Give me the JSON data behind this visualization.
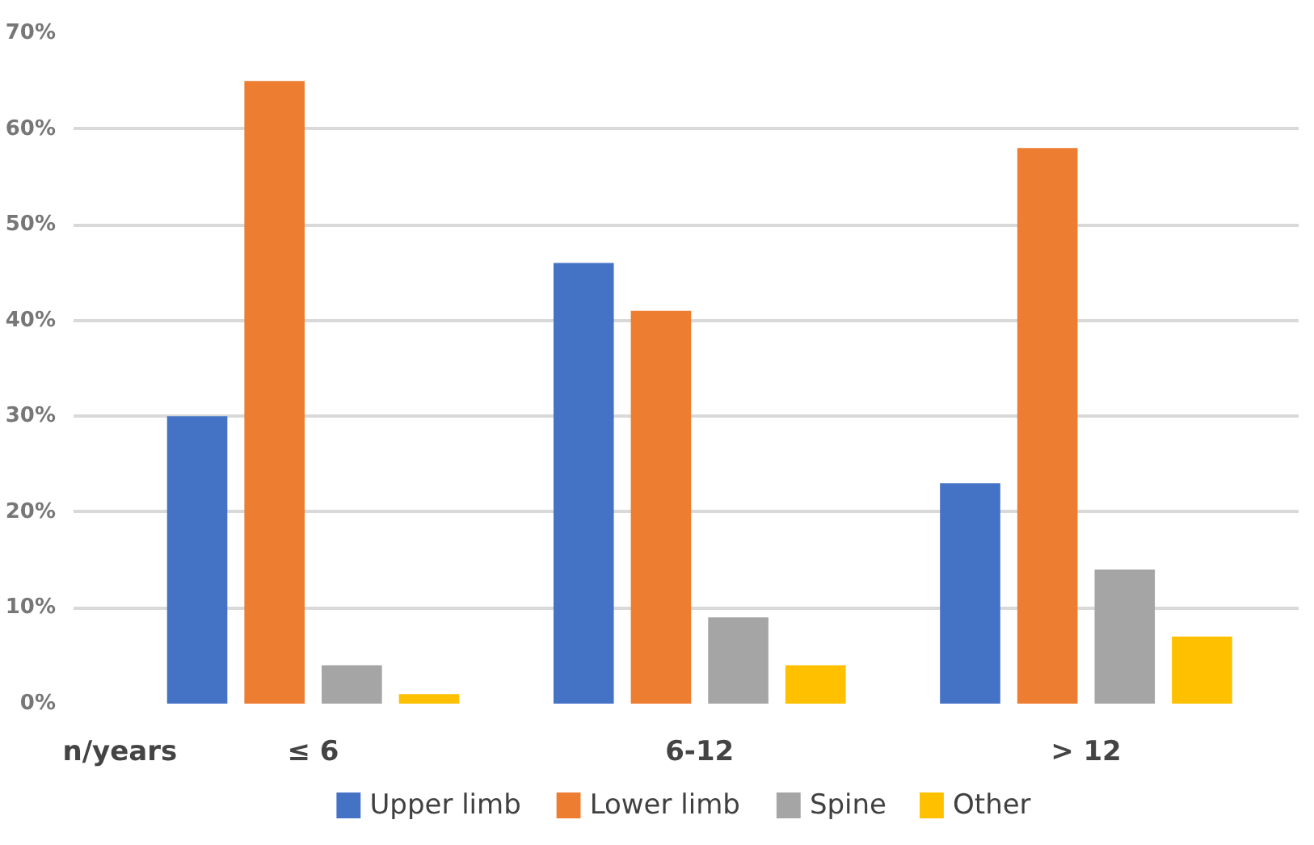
{
  "chart_data": {
    "type": "bar",
    "xlabel": "n/years",
    "categories": [
      "≤ 6",
      "6-12",
      "> 12"
    ],
    "series": [
      {
        "name": "Upper limb",
        "color": "#4472c4",
        "values": [
          30,
          46,
          23
        ]
      },
      {
        "name": "Lower limb",
        "color": "#ed7d31",
        "values": [
          65,
          41,
          58
        ]
      },
      {
        "name": "Spine",
        "color": "#a5a5a5",
        "values": [
          4,
          9,
          14
        ]
      },
      {
        "name": "Other",
        "color": "#ffc000",
        "values": [
          1,
          4,
          7
        ]
      }
    ],
    "ylim": [
      0,
      70
    ],
    "yticks": [
      {
        "value": 0,
        "label": "0%"
      },
      {
        "value": 10,
        "label": "10%"
      },
      {
        "value": 20,
        "label": "20%"
      },
      {
        "value": 30,
        "label": "30%"
      },
      {
        "value": 40,
        "label": "40%"
      },
      {
        "value": 50,
        "label": "50%"
      },
      {
        "value": 60,
        "label": "60%"
      },
      {
        "value": 70,
        "label": "70%"
      }
    ],
    "grid": "y",
    "legend": "bottom"
  }
}
